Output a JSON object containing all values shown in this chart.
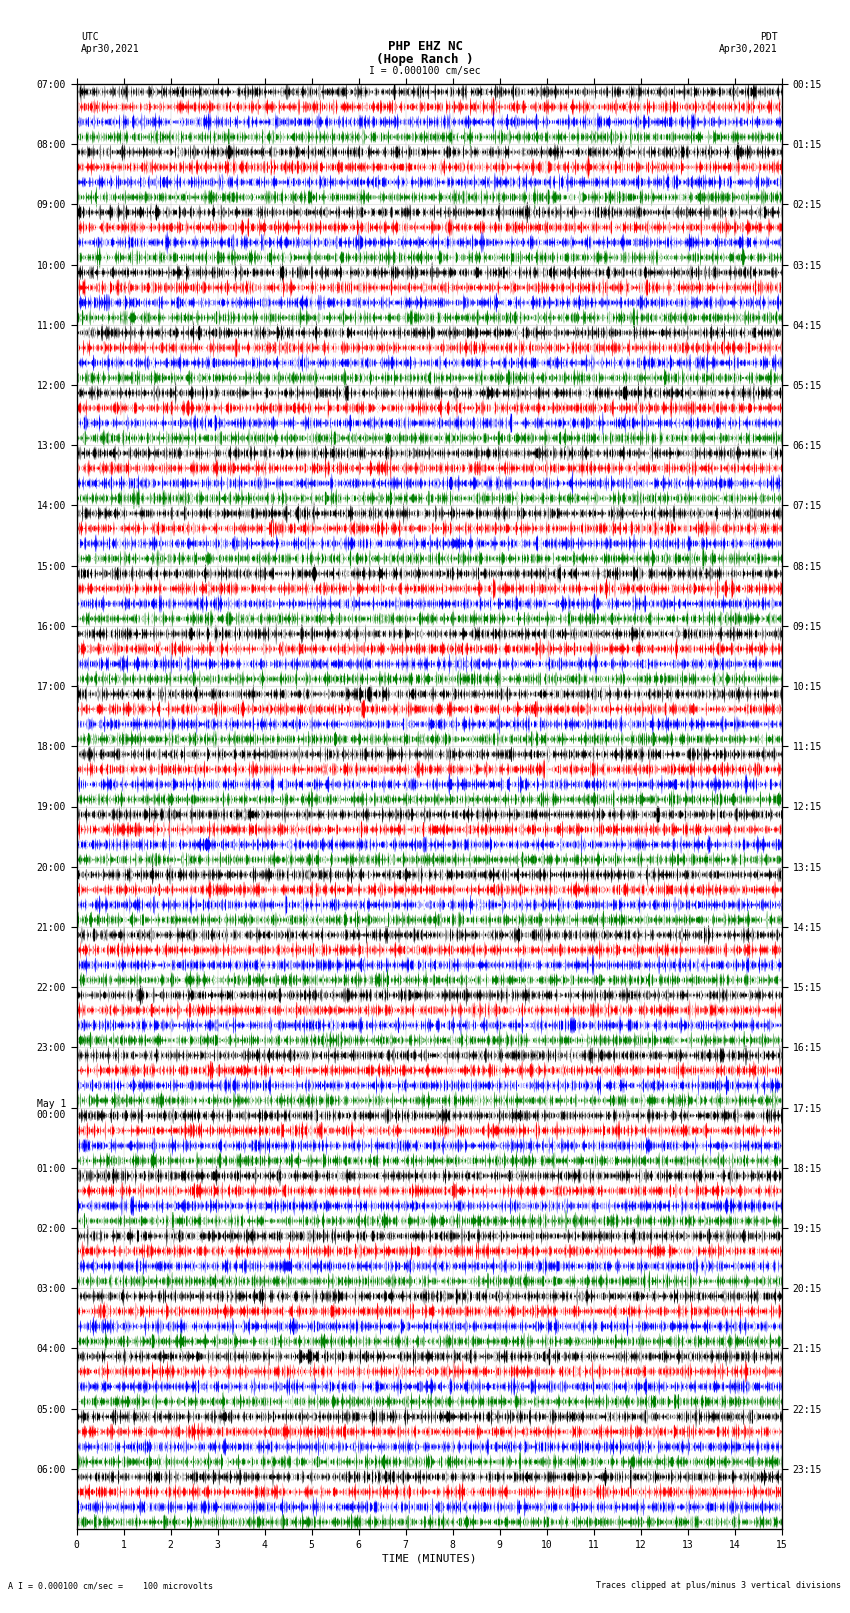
{
  "title_line1": "PHP EHZ NC",
  "title_line2": "(Hope Ranch )",
  "scale_label": "I = 0.000100 cm/sec",
  "left_header": "UTC\nApr30,2021",
  "right_header": "PDT\nApr30,2021",
  "bottom_label": "TIME (MINUTES)",
  "bottom_note_left": "A I = 0.000100 cm/sec =    100 microvolts",
  "bottom_note_right": "Traces clipped at plus/minus 3 vertical divisions",
  "utc_labels": [
    "07:00",
    "08:00",
    "09:00",
    "10:00",
    "11:00",
    "12:00",
    "13:00",
    "14:00",
    "15:00",
    "16:00",
    "17:00",
    "18:00",
    "19:00",
    "20:00",
    "21:00",
    "22:00",
    "23:00",
    "May 1\n00:00",
    "01:00",
    "02:00",
    "03:00",
    "04:00",
    "05:00",
    "06:00"
  ],
  "pdt_labels": [
    "00:15",
    "01:15",
    "02:15",
    "03:15",
    "04:15",
    "05:15",
    "06:15",
    "07:15",
    "08:15",
    "09:15",
    "10:15",
    "11:15",
    "12:15",
    "13:15",
    "14:15",
    "15:15",
    "16:15",
    "17:15",
    "18:15",
    "19:15",
    "20:15",
    "21:15",
    "22:15",
    "23:15"
  ],
  "num_rows": 24,
  "traces_per_row": 4,
  "trace_colors": [
    "black",
    "red",
    "blue",
    "green"
  ],
  "minutes": 15,
  "fig_width": 8.5,
  "fig_height": 16.13,
  "bg_color": "white",
  "seed": 42
}
